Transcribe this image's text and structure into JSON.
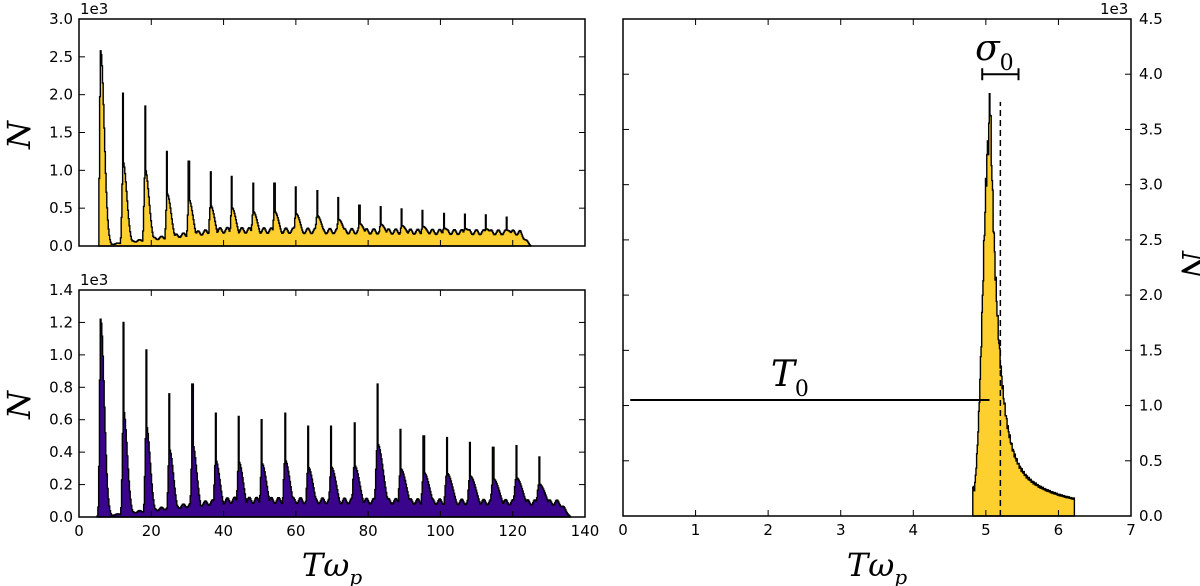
{
  "chart_data": [
    {
      "id": "top_left",
      "type": "histogram",
      "fill_color": "#fdd02f",
      "edge_color": "#000000",
      "ylim": [
        0,
        3000
      ],
      "xlim": [
        0,
        140
      ],
      "offset_text": "1e3",
      "yticks": [
        {
          "v": 0,
          "label": "0.0"
        },
        {
          "v": 500,
          "label": "0.5"
        },
        {
          "v": 1000,
          "label": "1.0"
        },
        {
          "v": 1500,
          "label": "1.5"
        },
        {
          "v": 2000,
          "label": "2.0"
        },
        {
          "v": 2500,
          "label": "2.5"
        },
        {
          "v": 3000,
          "label": "3.0"
        }
      ],
      "ylabel": "N",
      "peak_centers": [
        6,
        12.2,
        18.3,
        24.4,
        30.4,
        36.4,
        42.3,
        48.2,
        54.1,
        60,
        65.9,
        71.8,
        77.6,
        83.5,
        89.3,
        95.1,
        101,
        106.8,
        112.6,
        118.4
      ],
      "peak_heights": [
        2580,
        2020,
        1850,
        1250,
        1120,
        980,
        920,
        830,
        830,
        780,
        730,
        640,
        540,
        520,
        490,
        470,
        430,
        420,
        410,
        380
      ],
      "baseline": 260,
      "spike_every": 0.6,
      "range_start": 5.5,
      "range_end": 125
    },
    {
      "id": "bottom_left",
      "type": "histogram",
      "fill_color": "#3a048c",
      "edge_color": "#000000",
      "ylim": [
        0,
        1400
      ],
      "xlim": [
        0,
        140
      ],
      "offset_text": "1e3",
      "yticks": [
        {
          "v": 0,
          "label": "0.0"
        },
        {
          "v": 200,
          "label": "0.2"
        },
        {
          "v": 400,
          "label": "0.4"
        },
        {
          "v": 600,
          "label": "0.6"
        },
        {
          "v": 800,
          "label": "0.8"
        },
        {
          "v": 1000,
          "label": "1.0"
        },
        {
          "v": 1200,
          "label": "1.2"
        },
        {
          "v": 1400,
          "label": "1.4"
        }
      ],
      "xticks": [
        {
          "v": 0,
          "label": "0"
        },
        {
          "v": 20,
          "label": "20"
        },
        {
          "v": 40,
          "label": "40"
        },
        {
          "v": 60,
          "label": "60"
        },
        {
          "v": 80,
          "label": "80"
        },
        {
          "v": 100,
          "label": "100"
        },
        {
          "v": 120,
          "label": "120"
        },
        {
          "v": 140,
          "label": "140"
        }
      ],
      "xlabel": "Tω",
      "xlabel_sub": "p",
      "ylabel": "N",
      "peak_centers": [
        6,
        12.3,
        18.6,
        25,
        31.4,
        37.8,
        44.2,
        50.6,
        57,
        63.4,
        69.8,
        76.2,
        82.6,
        89,
        95.4,
        101.8,
        108.2,
        114.6,
        121,
        127.3
      ],
      "peak_heights": [
        1220,
        1200,
        1030,
        760,
        820,
        640,
        620,
        600,
        640,
        560,
        560,
        580,
        820,
        540,
        500,
        490,
        460,
        430,
        440,
        370
      ],
      "baseline": 130,
      "spike_every": 0.6,
      "range_start": 5,
      "range_end": 136
    },
    {
      "id": "right",
      "type": "histogram",
      "fill_color": "#fdd02f",
      "edge_color": "#000000",
      "ylim": [
        0,
        4500
      ],
      "xlim": [
        0,
        7
      ],
      "offset_text": "1e3",
      "yticks": [
        {
          "v": 0,
          "label": "0.0"
        },
        {
          "v": 500,
          "label": "0.5"
        },
        {
          "v": 1000,
          "label": "1.0"
        },
        {
          "v": 1500,
          "label": "1.5"
        },
        {
          "v": 2000,
          "label": "2.0"
        },
        {
          "v": 2500,
          "label": "2.5"
        },
        {
          "v": 3000,
          "label": "3.0"
        },
        {
          "v": 3500,
          "label": "3.5"
        },
        {
          "v": 4000,
          "label": "4.0"
        },
        {
          "v": 4500,
          "label": "4.5"
        }
      ],
      "xticks": [
        {
          "v": 0,
          "label": "0"
        },
        {
          "v": 1,
          "label": "1"
        },
        {
          "v": 2,
          "label": "2"
        },
        {
          "v": 3,
          "label": "3"
        },
        {
          "v": 4,
          "label": "4"
        },
        {
          "v": 5,
          "label": "5"
        },
        {
          "v": 6,
          "label": "6"
        },
        {
          "v": 7,
          "label": "7"
        }
      ],
      "xlabel": "Tω",
      "xlabel_sub": "p",
      "ylabel": "N",
      "peak_value": 3840,
      "peak_x": 5.05,
      "range_start": 4.82,
      "range_end": 6.22,
      "mean_line_x": 5.2,
      "annotations": {
        "T0": {
          "label": "T",
          "sub": "0",
          "x_start": 0.1,
          "x_end": 5.05,
          "y": 1050
        },
        "sigma0": {
          "label": "σ",
          "sub": "0",
          "x_start": 4.95,
          "x_end": 5.45,
          "y": 4000
        }
      }
    }
  ]
}
